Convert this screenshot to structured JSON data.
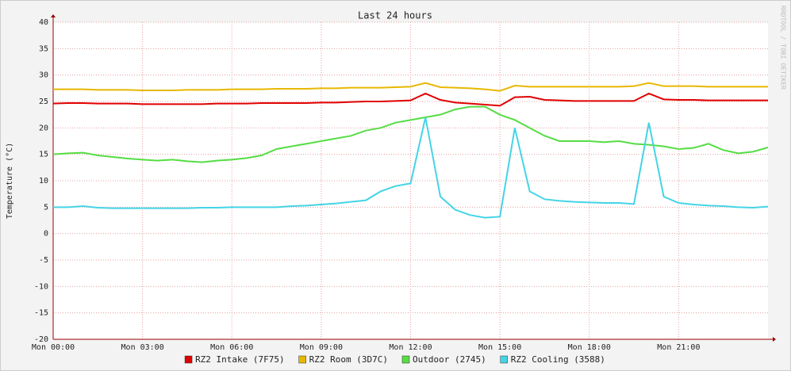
{
  "chart_data": {
    "type": "line",
    "title": "Last 24 hours",
    "y_label": "Temperature (°C)",
    "watermark": "RRDTOOL / TOBI OETIKER",
    "x": [
      0,
      0.5,
      1,
      1.5,
      2,
      2.5,
      3,
      3.5,
      4,
      4.5,
      5,
      5.5,
      6,
      6.5,
      7,
      7.5,
      8,
      8.5,
      9,
      9.5,
      10,
      10.5,
      11,
      11.5,
      12,
      12.5,
      13,
      13.5,
      14,
      14.5,
      15,
      15.5,
      16,
      16.5,
      17,
      17.5,
      18,
      18.5,
      19,
      19.5,
      20,
      20.5,
      21,
      21.5,
      22,
      22.5,
      23,
      23.5,
      24
    ],
    "xlim": [
      0,
      24
    ],
    "xticks": [
      {
        "value": 0,
        "label": "Mon 00:00"
      },
      {
        "value": 3,
        "label": "Mon 03:00"
      },
      {
        "value": 6,
        "label": "Mon 06:00"
      },
      {
        "value": 9,
        "label": "Mon 09:00"
      },
      {
        "value": 12,
        "label": "Mon 12:00"
      },
      {
        "value": 15,
        "label": "Mon 15:00"
      },
      {
        "value": 18,
        "label": "Mon 18:00"
      },
      {
        "value": 21,
        "label": "Mon 21:00"
      }
    ],
    "ylim": [
      -20,
      40
    ],
    "yticks": [
      -20,
      -15,
      -10,
      -5,
      0,
      5,
      10,
      15,
      20,
      25,
      30,
      35,
      40
    ],
    "grid": true,
    "legend": "bottom",
    "series": [
      {
        "name": "RZ2 Intake (7F75)",
        "color": "#e00000",
        "values": [
          24.6,
          24.7,
          24.7,
          24.6,
          24.6,
          24.6,
          24.5,
          24.5,
          24.5,
          24.5,
          24.5,
          24.6,
          24.6,
          24.6,
          24.7,
          24.7,
          24.7,
          24.7,
          24.8,
          24.8,
          24.9,
          25,
          25,
          25.1,
          25.2,
          26.5,
          25.3,
          24.8,
          24.6,
          24.4,
          24.2,
          25.8,
          25.9,
          25.3,
          25.2,
          25.1,
          25.1,
          25.1,
          25.1,
          25.1,
          26.5,
          25.4,
          25.3,
          25.3,
          25.2,
          25.2,
          25.2,
          25.2,
          25.2
        ]
      },
      {
        "name": "RZ2 Room (3D7C)",
        "color": "#e8b800",
        "values": [
          27.3,
          27.3,
          27.3,
          27.2,
          27.2,
          27.2,
          27.1,
          27.1,
          27.1,
          27.2,
          27.2,
          27.2,
          27.3,
          27.3,
          27.3,
          27.4,
          27.4,
          27.4,
          27.5,
          27.5,
          27.6,
          27.6,
          27.6,
          27.7,
          27.8,
          28.5,
          27.7,
          27.6,
          27.5,
          27.3,
          27.0,
          28.0,
          27.8,
          27.8,
          27.8,
          27.8,
          27.8,
          27.8,
          27.8,
          27.9,
          28.5,
          27.9,
          27.9,
          27.9,
          27.8,
          27.8,
          27.8,
          27.8,
          27.8
        ]
      },
      {
        "name": "Outdoor (2745)",
        "color": "#55dd44",
        "values": [
          15,
          15.2,
          15.3,
          14.8,
          14.5,
          14.2,
          14,
          13.8,
          14,
          13.7,
          13.5,
          13.8,
          14,
          14.3,
          14.8,
          16,
          16.5,
          17,
          17.5,
          18,
          18.5,
          19.5,
          20,
          21,
          21.5,
          22,
          22.5,
          23.5,
          24,
          24,
          22.5,
          21.5,
          20,
          18.5,
          17.5,
          17.5,
          17.5,
          17.3,
          17.5,
          17,
          16.8,
          16.5,
          16,
          16.2,
          17,
          15.8,
          15.2,
          15.5,
          16.3
        ]
      },
      {
        "name": "RZ2 Cooling (3588)",
        "color": "#44d4e6",
        "values": [
          5,
          5,
          5.2,
          4.9,
          4.8,
          4.8,
          4.8,
          4.8,
          4.8,
          4.8,
          4.9,
          4.9,
          5,
          5,
          5,
          5,
          5.2,
          5.3,
          5.5,
          5.7,
          6,
          6.3,
          8,
          9,
          9.5,
          22,
          7,
          4.5,
          3.5,
          3,
          3.2,
          20,
          8,
          6.5,
          6.2,
          6,
          5.9,
          5.8,
          5.8,
          5.6,
          21,
          7,
          5.8,
          5.5,
          5.3,
          5.2,
          5,
          4.9,
          5.1
        ]
      }
    ]
  }
}
